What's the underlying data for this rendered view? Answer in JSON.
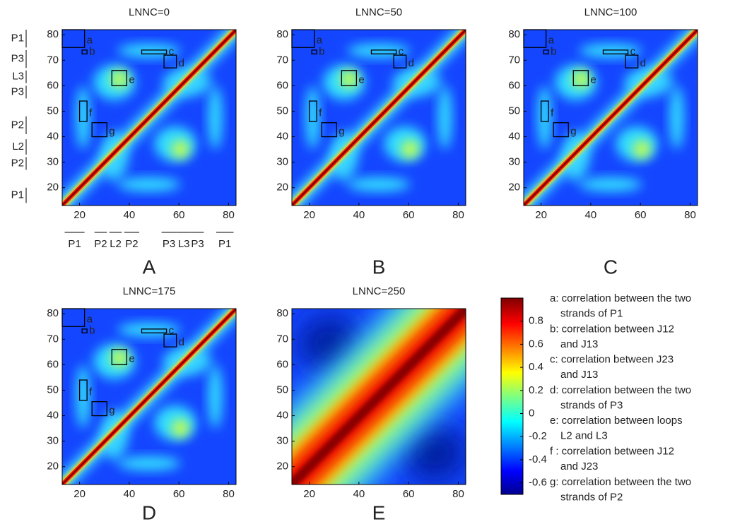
{
  "chart_data": [
    {
      "type": "heatmap",
      "title": "LNNC=0",
      "panel": "A",
      "xlim": [
        13,
        83
      ],
      "ylim": [
        13,
        82
      ],
      "xticks": [
        20,
        40,
        60,
        80
      ],
      "yticks": [
        20,
        30,
        40,
        50,
        60,
        70,
        80
      ],
      "boxes": [
        {
          "label": "a",
          "x": [
            13,
            22
          ],
          "y": [
            75,
            82
          ]
        },
        {
          "label": "b",
          "x": [
            21,
            23
          ],
          "y": [
            72.5,
            74
          ]
        },
        {
          "label": "c",
          "x": [
            45,
            55
          ],
          "y": [
            72.5,
            74
          ]
        },
        {
          "label": "d",
          "x": [
            54,
            59
          ],
          "y": [
            67,
            72
          ]
        },
        {
          "label": "e",
          "x": [
            33,
            39
          ],
          "y": [
            60,
            66
          ]
        },
        {
          "label": "f",
          "x": [
            20,
            23
          ],
          "y": [
            46,
            54
          ]
        },
        {
          "label": "g",
          "x": [
            25,
            31
          ],
          "y": [
            40,
            45.5
          ]
        }
      ],
      "y_regions": [
        {
          "label": "P1",
          "range": [
            75,
            82
          ]
        },
        {
          "label": "P3",
          "range": [
            67,
            74
          ]
        },
        {
          "label": "L3",
          "range": [
            61,
            66
          ]
        },
        {
          "label": "P3",
          "range": [
            55,
            60
          ]
        },
        {
          "label": "P2",
          "range": [
            41,
            48
          ]
        },
        {
          "label": "L2",
          "range": [
            33,
            39
          ]
        },
        {
          "label": "P2",
          "range": [
            27,
            32
          ]
        },
        {
          "label": "P1",
          "range": [
            14,
            20
          ]
        }
      ],
      "x_regions": [
        {
          "label": "P1",
          "range": [
            14,
            22
          ]
        },
        {
          "label": "P2",
          "range": [
            26,
            31
          ]
        },
        {
          "label": "L2",
          "range": [
            32,
            37
          ]
        },
        {
          "label": "P2",
          "range": [
            38,
            44
          ]
        },
        {
          "label": "P3",
          "range": [
            53,
            59
          ]
        },
        {
          "label": "L3",
          "range": [
            59,
            65
          ]
        },
        {
          "label": "P3",
          "range": [
            65,
            70
          ]
        },
        {
          "label": "P1",
          "range": [
            75,
            82
          ]
        }
      ]
    },
    {
      "type": "heatmap",
      "title": "LNNC=50",
      "panel": "B",
      "xlim": [
        13,
        83
      ],
      "ylim": [
        13,
        82
      ],
      "xticks": [
        20,
        40,
        60,
        80
      ],
      "yticks": [
        20,
        30,
        40,
        50,
        60,
        70,
        80
      ],
      "boxes": [
        {
          "label": "a",
          "x": [
            13,
            22
          ],
          "y": [
            75,
            82
          ]
        },
        {
          "label": "b",
          "x": [
            21,
            23
          ],
          "y": [
            72.5,
            74
          ]
        },
        {
          "label": "c",
          "x": [
            45,
            55
          ],
          "y": [
            72.5,
            74
          ]
        },
        {
          "label": "d",
          "x": [
            54,
            59
          ],
          "y": [
            67,
            72
          ]
        },
        {
          "label": "e",
          "x": [
            33,
            39
          ],
          "y": [
            60,
            66
          ]
        },
        {
          "label": "f",
          "x": [
            20,
            23
          ],
          "y": [
            46,
            54
          ]
        },
        {
          "label": "g",
          "x": [
            25,
            31
          ],
          "y": [
            40,
            45.5
          ]
        }
      ]
    },
    {
      "type": "heatmap",
      "title": "LNNC=100",
      "panel": "C",
      "xlim": [
        13,
        83
      ],
      "ylim": [
        13,
        82
      ],
      "xticks": [
        20,
        40,
        60,
        80
      ],
      "yticks": [
        20,
        30,
        40,
        50,
        60,
        70,
        80
      ],
      "boxes": [
        {
          "label": "a",
          "x": [
            13,
            22
          ],
          "y": [
            75,
            82
          ]
        },
        {
          "label": "b",
          "x": [
            21,
            23
          ],
          "y": [
            72.5,
            74
          ]
        },
        {
          "label": "c",
          "x": [
            45,
            55
          ],
          "y": [
            72.5,
            74
          ]
        },
        {
          "label": "d",
          "x": [
            54,
            59
          ],
          "y": [
            67,
            72
          ]
        },
        {
          "label": "e",
          "x": [
            33,
            39
          ],
          "y": [
            60,
            66
          ]
        },
        {
          "label": "f",
          "x": [
            20,
            23
          ],
          "y": [
            46,
            54
          ]
        },
        {
          "label": "g",
          "x": [
            25,
            31
          ],
          "y": [
            40,
            45.5
          ]
        }
      ]
    },
    {
      "type": "heatmap",
      "title": "LNNC=175",
      "panel": "D",
      "xlim": [
        13,
        83
      ],
      "ylim": [
        13,
        82
      ],
      "xticks": [
        20,
        40,
        60,
        80
      ],
      "yticks": [
        20,
        30,
        40,
        50,
        60,
        70,
        80
      ],
      "boxes": [
        {
          "label": "a",
          "x": [
            13,
            22
          ],
          "y": [
            75,
            82
          ]
        },
        {
          "label": "b",
          "x": [
            21,
            23
          ],
          "y": [
            72.5,
            74
          ]
        },
        {
          "label": "c",
          "x": [
            45,
            55
          ],
          "y": [
            72.5,
            74
          ]
        },
        {
          "label": "d",
          "x": [
            54,
            59
          ],
          "y": [
            67,
            72
          ]
        },
        {
          "label": "e",
          "x": [
            33,
            39
          ],
          "y": [
            60,
            66
          ]
        },
        {
          "label": "f",
          "x": [
            20,
            23
          ],
          "y": [
            46,
            54
          ]
        },
        {
          "label": "g",
          "x": [
            25,
            31
          ],
          "y": [
            40,
            45.5
          ]
        }
      ]
    },
    {
      "type": "heatmap_smooth",
      "title": "LNNC=250",
      "panel": "E",
      "xlim": [
        13,
        83
      ],
      "ylim": [
        13,
        82
      ],
      "xticks": [
        20,
        40,
        60,
        80
      ],
      "yticks": [
        20,
        30,
        40,
        50,
        60,
        70,
        80
      ]
    },
    {
      "type": "colorbar",
      "clim": [
        -0.7,
        1.0
      ],
      "ticks": [
        -0.6,
        -0.4,
        -0.2,
        0,
        0.2,
        0.4,
        0.6,
        0.8
      ],
      "legend": [
        [
          "a: correlation between the two",
          "strands of P1"
        ],
        [
          "b: correlation between J12",
          "and J13"
        ],
        [
          "c: correlation between J23",
          "and J13"
        ],
        [
          "d: correlation between the two",
          "strands of P3"
        ],
        [
          "e: correlation between loops",
          "L2 and L3"
        ],
        [
          "f : correlation between J12",
          "and J23"
        ],
        [
          "g: correlation between the two",
          "strands of P2"
        ]
      ]
    }
  ]
}
